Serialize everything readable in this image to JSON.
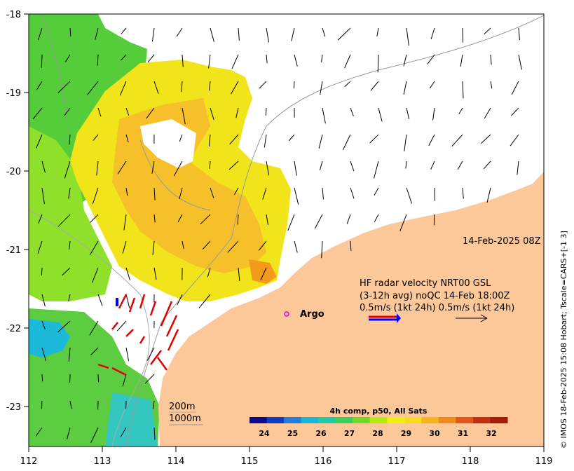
{
  "axes": {
    "x_ticks": [
      "112",
      "113",
      "114",
      "115",
      "116",
      "117",
      "118",
      "119"
    ],
    "y_ticks": [
      "-18",
      "-19",
      "-20",
      "-21",
      "-22",
      "-23"
    ]
  },
  "timestamp": "14-Feb-2025 08Z",
  "argo_label": "Argo",
  "hf_radar": {
    "line1": "HF radar velocity  NRT00 GSL",
    "line2": "(3-12h avg) noQC 14-Feb 18:00Z",
    "line3": "0.5m/s (1kt 24h)  0.5m/s (1kt 24h)"
  },
  "depth_legend": {
    "contour1": "200m",
    "contour2": "1000m"
  },
  "colorbar": {
    "title": "4h comp, p50, All Sats",
    "ticks": [
      "24",
      "25",
      "26",
      "27",
      "28",
      "29",
      "30",
      "31",
      "32"
    ],
    "colors": [
      "#0a0a8c",
      "#0d3cc2",
      "#1f7fe0",
      "#17b6d8",
      "#1ec9a6",
      "#38d060",
      "#6fdb26",
      "#b5ea10",
      "#eef20a",
      "#f8dc1c",
      "#f6b21f",
      "#f08a1a",
      "#e2581a",
      "#c42d10",
      "#a81a0a"
    ]
  },
  "side_credit": "© IMOS 18-Feb-2025 15:08 Hobart; Tscale=CARS+[-1 3]",
  "colors": {
    "land": "#fcc89a",
    "hf_arrow_red": "#e00000",
    "hf_arrow_blue": "#0000ff",
    "argo_marker": "#e000e0"
  }
}
